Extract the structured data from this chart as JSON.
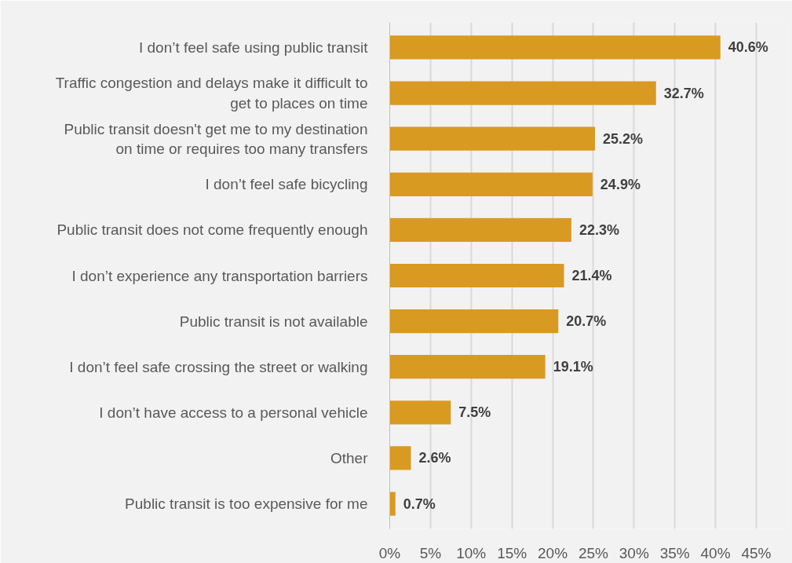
{
  "chart_data": {
    "type": "bar",
    "orientation": "horizontal",
    "categories": [
      "I don’t feel safe using public transit",
      "Traffic congestion and delays make it difficult to\nget to places on time",
      "Public transit doesn't get me to my destination\non time or requires too many transfers",
      "I don’t feel safe bicycling",
      "Public transit does not come frequently enough",
      "I don’t experience any transportation barriers",
      "Public transit is not available",
      "I don’t feel safe crossing the street or walking",
      "I don’t have access to a personal vehicle",
      "Other",
      "Public transit is too expensive for me"
    ],
    "values": [
      40.6,
      32.7,
      25.2,
      24.9,
      22.3,
      21.4,
      20.7,
      19.1,
      7.5,
      2.6,
      0.7
    ],
    "value_labels": [
      "40.6%",
      "32.7%",
      "25.2%",
      "24.9%",
      "22.3%",
      "21.4%",
      "20.7%",
      "19.1%",
      "7.5%",
      "2.6%",
      "0.7%"
    ],
    "color": "#d99a22",
    "xlim": [
      0,
      45
    ],
    "xticks": [
      {
        "value": 0,
        "label": "0%"
      },
      {
        "value": 5,
        "label": "5%"
      },
      {
        "value": 10,
        "label": "10%"
      },
      {
        "value": 15,
        "label": "15%"
      },
      {
        "value": 20,
        "label": "20%"
      },
      {
        "value": 25,
        "label": "25%"
      },
      {
        "value": 30,
        "label": "30%"
      },
      {
        "value": 35,
        "label": "35%"
      },
      {
        "value": 40,
        "label": "40%"
      },
      {
        "value": 45,
        "label": "45%"
      }
    ],
    "grid": "x"
  }
}
